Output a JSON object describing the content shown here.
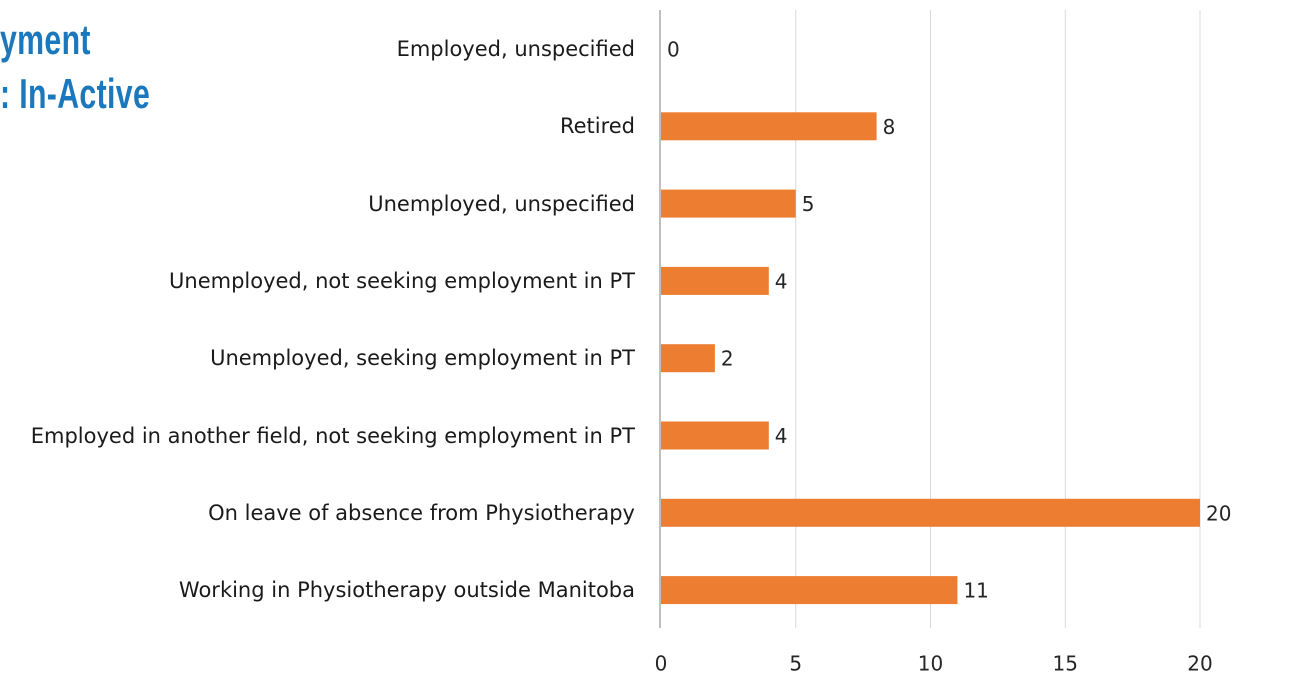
{
  "chart_data": {
    "type": "bar",
    "orientation": "horizontal",
    "title_lines": [
      "yment",
      ": In-Active"
    ],
    "categories": [
      "Employed, unspecified",
      "Retired",
      "Unemployed, unspecified",
      "Unemployed, not seeking employment in PT",
      "Unemployed, seeking employment in PT",
      "Employed in another field, not seeking employment in PT",
      "On leave of absence from Physiotherapy",
      "Working in Physiotherapy outside Manitoba"
    ],
    "values": [
      0,
      8,
      5,
      4,
      2,
      4,
      20,
      11
    ],
    "color": "#ed7d31",
    "xlim": [
      0,
      20
    ],
    "xticks": [
      0,
      5,
      10,
      15,
      20
    ],
    "grid": true
  }
}
